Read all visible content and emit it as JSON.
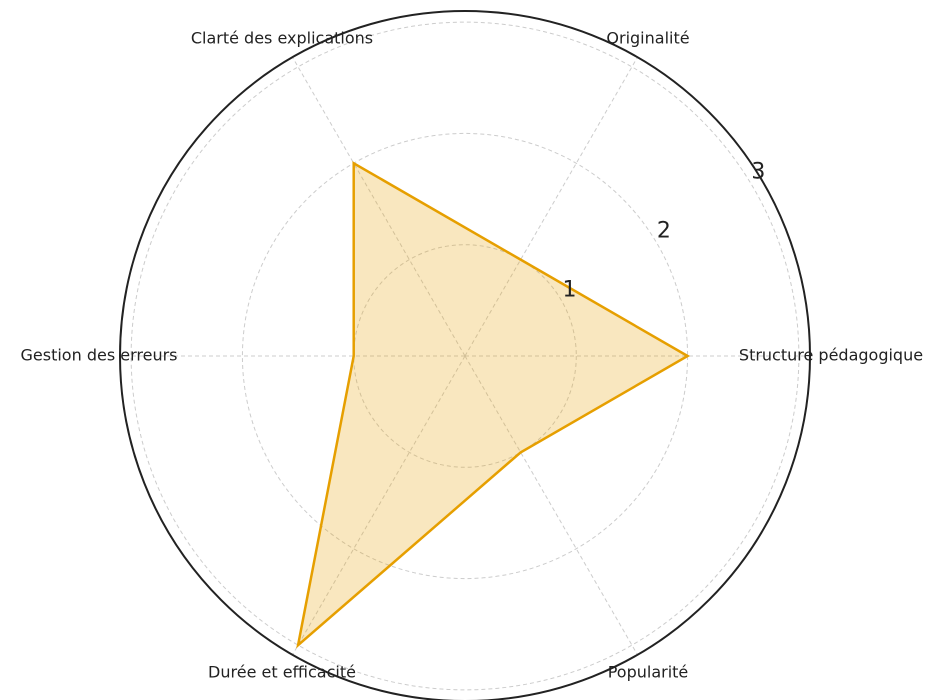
{
  "chart_data": {
    "type": "radar",
    "categories": [
      "Structure pédagogique",
      "Originalité",
      "Clarté des explications",
      "Gestion des erreurs",
      "Durée et efficacité",
      "Popularité"
    ],
    "values": [
      2,
      1,
      2,
      1,
      3,
      1
    ],
    "color": "#e69f00",
    "ylim": [
      0,
      3.1
    ],
    "yticks": [
      1,
      2,
      3
    ],
    "grid": true
  }
}
